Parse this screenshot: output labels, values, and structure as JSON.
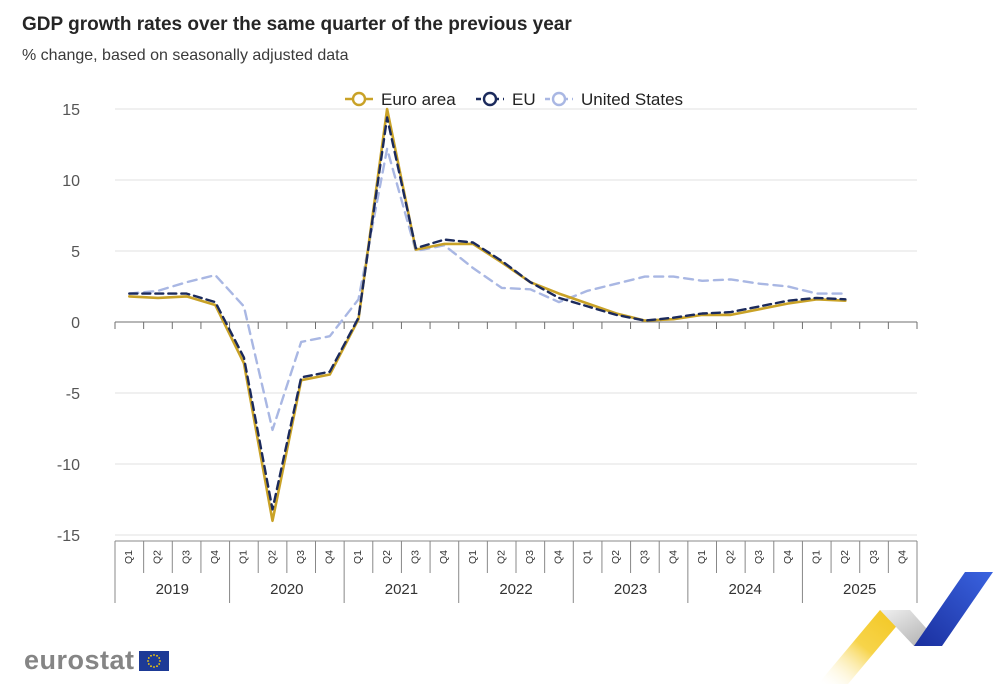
{
  "header": {
    "title": "GDP growth rates over the same quarter of the previous year",
    "subtitle": "% change, based on seasonally adjusted data"
  },
  "footer": {
    "logo_text": "eurostat"
  },
  "chart_data": {
    "type": "line",
    "title": "GDP growth rates over the same quarter of the previous year",
    "subtitle": "% change, based on seasonally adjusted data",
    "xlabel": "",
    "ylabel": "",
    "ylim": [
      -15,
      15
    ],
    "yticks": [
      15,
      10,
      5,
      0,
      -5,
      -10,
      -15
    ],
    "ytick_labels": [
      "15",
      "10",
      "5",
      "0",
      "-5",
      "-10",
      "-15"
    ],
    "quarter_labels": [
      "Q1",
      "Q2",
      "Q3",
      "Q4"
    ],
    "years": [
      "2019",
      "2020",
      "2021",
      "2022",
      "2023",
      "2024",
      "2025"
    ],
    "legend_position": "top-center",
    "series": [
      {
        "name": "Euro area",
        "color": "#c9a227",
        "dash": "solid",
        "values": [
          1.8,
          1.7,
          1.8,
          1.2,
          -2.9,
          -14.0,
          -4.1,
          -3.7,
          0.2,
          15.0,
          5.1,
          5.5,
          5.5,
          4.2,
          2.8,
          2.0,
          1.3,
          0.6,
          0.1,
          0.2,
          0.5,
          0.5,
          0.9,
          1.3,
          1.6,
          1.5,
          null,
          null
        ]
      },
      {
        "name": "EU",
        "color": "#1b2a5c",
        "dash": "dashed",
        "values": [
          2.0,
          2.0,
          2.0,
          1.4,
          -2.5,
          -13.2,
          -3.9,
          -3.5,
          0.3,
          14.4,
          5.2,
          5.8,
          5.6,
          4.3,
          2.8,
          1.7,
          1.1,
          0.5,
          0.1,
          0.3,
          0.6,
          0.7,
          1.1,
          1.5,
          1.7,
          1.6,
          null,
          null
        ]
      },
      {
        "name": "United States",
        "color": "#a9b7e3",
        "dash": "dashed",
        "values": [
          2.0,
          2.2,
          2.8,
          3.3,
          1.1,
          -7.6,
          -1.4,
          -1.0,
          1.6,
          12.2,
          5.0,
          5.4,
          3.8,
          2.4,
          2.3,
          1.4,
          2.2,
          2.7,
          3.2,
          3.2,
          2.9,
          3.0,
          2.7,
          2.5,
          2.0,
          2.0,
          null,
          null
        ]
      }
    ]
  }
}
